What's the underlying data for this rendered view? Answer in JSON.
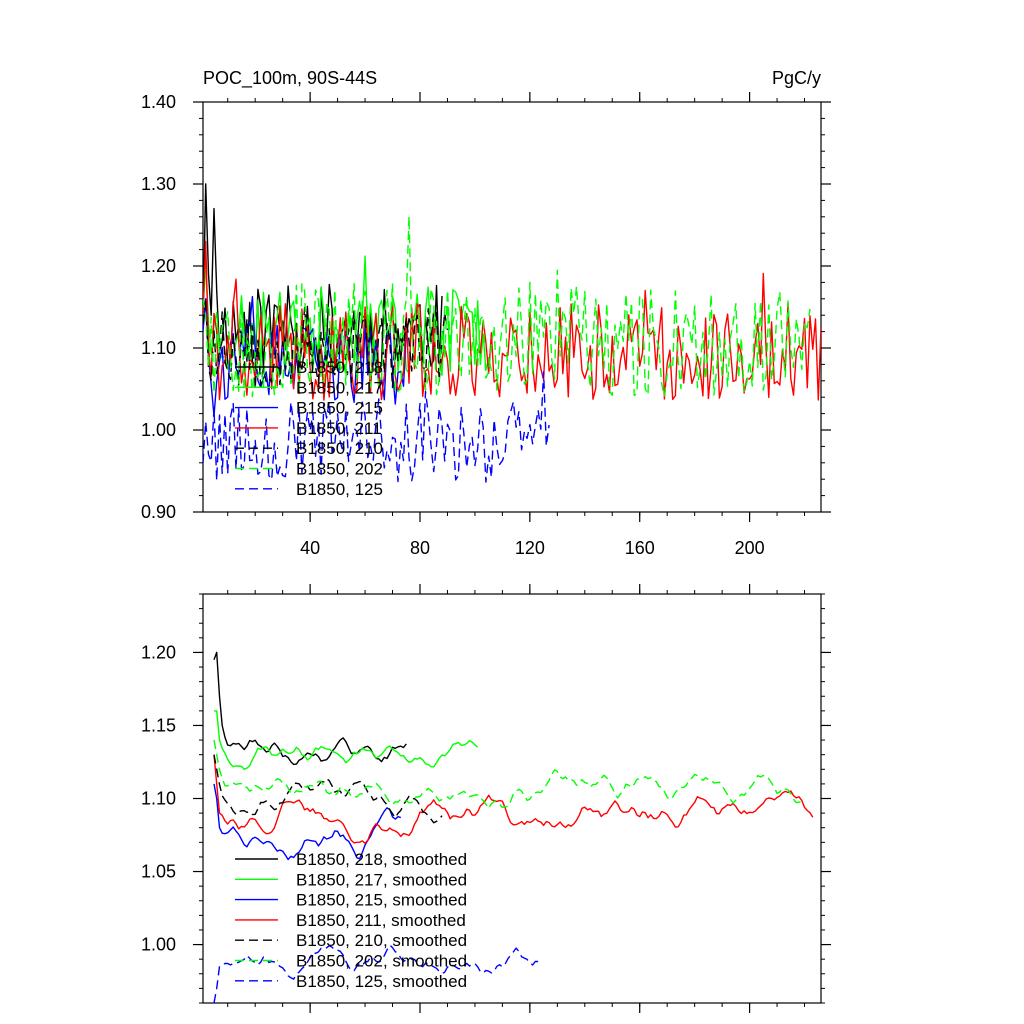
{
  "chart_data": [
    {
      "type": "line",
      "title_left": "POC_100m, 90S-44S",
      "title_right": "PgC/y",
      "xlim": [
        1,
        226
      ],
      "ylim": [
        0.9,
        1.4
      ],
      "xticks": [
        40,
        80,
        120,
        160,
        200
      ],
      "xtick_labels": [
        "40",
        "80",
        "120",
        "160",
        "200"
      ],
      "yticks": [
        0.9,
        1.0,
        1.1,
        1.2,
        1.3,
        1.4
      ],
      "ytick_labels": [
        "0.90",
        "1.00",
        "1.10",
        "1.20",
        "1.30",
        "1.40"
      ],
      "series": [
        {
          "name": "B1850, 218",
          "color": "#000000",
          "dash": "solid",
          "x_start": 1,
          "x_end": 88,
          "mean": 1.125,
          "amp": 0.055,
          "initial": [
            1.13,
            1.3,
            1.19,
            1.14,
            1.27,
            1.17
          ],
          "seed": 11
        },
        {
          "name": "B1850, 217",
          "color": "#00ff00",
          "dash": "solid",
          "x_start": 1,
          "x_end": 106,
          "mean": 1.12,
          "amp": 0.055,
          "initial": [
            1.15,
            1.2,
            1.13
          ],
          "seed": 23
        },
        {
          "name": "B1850, 215",
          "color": "#0000ff",
          "dash": "solid",
          "x_start": 1,
          "x_end": 75,
          "mean": 1.08,
          "amp": 0.05,
          "initial": [
            1.12,
            1.16,
            1.09
          ],
          "seed": 37
        },
        {
          "name": "B1850, 211",
          "color": "#ff0000",
          "dash": "solid",
          "x_start": 1,
          "x_end": 226,
          "mean": 1.095,
          "amp": 0.06,
          "initial": [
            1.14,
            1.23,
            1.1
          ],
          "seed": 41
        },
        {
          "name": "B1850, 210",
          "color": "#000000",
          "dash": "dashed",
          "x_start": 1,
          "x_end": 90,
          "mean": 1.1,
          "amp": 0.05,
          "initial": [
            1.13,
            1.16
          ],
          "seed": 53
        },
        {
          "name": "B1850, 202",
          "color": "#00ff00",
          "dash": "dashed",
          "x_start": 1,
          "x_end": 222,
          "mean": 1.11,
          "amp": 0.07,
          "initial": [
            1.16,
            1.14
          ],
          "seed": 67
        },
        {
          "name": "B1850, 125",
          "color": "#0000ff",
          "dash": "dashed",
          "x_start": 1,
          "x_end": 127,
          "mean": 0.985,
          "amp": 0.05,
          "initial": [
            0.96,
            1.01,
            0.97
          ],
          "seed": 79
        }
      ],
      "legend_position": "lower-left"
    },
    {
      "type": "line",
      "xlim": [
        1,
        226
      ],
      "ylim": [
        0.96,
        1.24
      ],
      "xticks": [
        40,
        80,
        120,
        160,
        200
      ],
      "yticks": [
        1.0,
        1.05,
        1.1,
        1.15,
        1.2
      ],
      "ytick_labels": [
        "1.00",
        "1.05",
        "1.10",
        "1.15",
        "1.20"
      ],
      "series": [
        {
          "name": "B1850, 218, smoothed",
          "color": "#000000",
          "dash": "solid",
          "x_start": 5,
          "x_end": 75,
          "mean": 1.135,
          "amp": 0.016,
          "initial": [
            1.195,
            1.2,
            1.17,
            1.15
          ],
          "seed": 111
        },
        {
          "name": "B1850, 217, smoothed",
          "color": "#00ff00",
          "dash": "solid",
          "x_start": 5,
          "x_end": 101,
          "mean": 1.13,
          "amp": 0.014,
          "initial": [
            1.16,
            1.16,
            1.14
          ],
          "seed": 123
        },
        {
          "name": "B1850, 215, smoothed",
          "color": "#0000ff",
          "dash": "solid",
          "x_start": 5,
          "x_end": 73,
          "mean": 1.075,
          "amp": 0.018,
          "initial": [
            1.11,
            1.1,
            1.08
          ],
          "seed": 137
        },
        {
          "name": "B1850, 211, smoothed",
          "color": "#ff0000",
          "dash": "solid",
          "x_start": 5,
          "x_end": 223,
          "mean": 1.09,
          "amp": 0.018,
          "initial": [
            1.13,
            1.11,
            1.09
          ],
          "seed": 141
        },
        {
          "name": "B1850, 210, smoothed",
          "color": "#000000",
          "dash": "dashed",
          "x_start": 5,
          "x_end": 88,
          "mean": 1.1,
          "amp": 0.016,
          "initial": [
            1.13,
            1.12
          ],
          "seed": 153
        },
        {
          "name": "B1850, 202, smoothed",
          "color": "#00ff00",
          "dash": "dashed",
          "x_start": 5,
          "x_end": 219,
          "mean": 1.11,
          "amp": 0.016,
          "initial": [
            1.14,
            1.13
          ],
          "seed": 167
        },
        {
          "name": "B1850, 125, smoothed",
          "color": "#0000ff",
          "dash": "dashed",
          "x_start": 5,
          "x_end": 123,
          "mean": 0.99,
          "amp": 0.014,
          "initial": [
            0.96,
            0.97,
            0.985
          ],
          "seed": 179
        }
      ],
      "legend_position": "lower-left"
    }
  ]
}
